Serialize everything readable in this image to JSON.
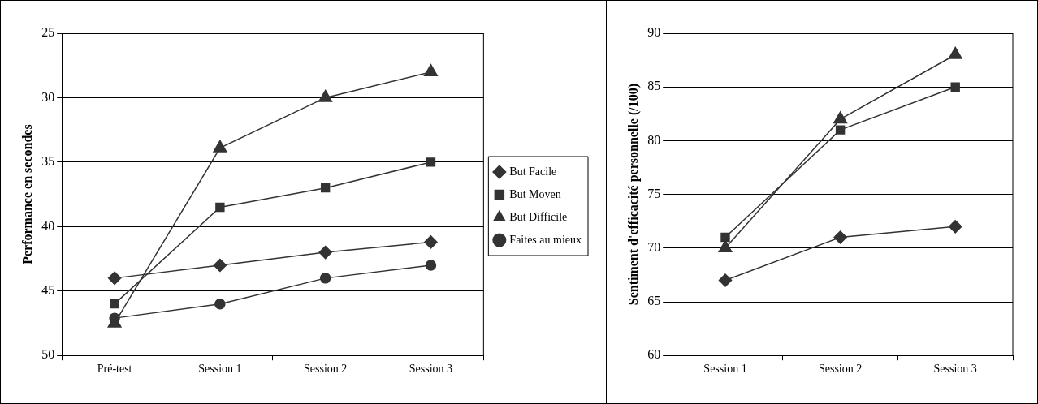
{
  "chart_data": [
    {
      "type": "line",
      "ylabel": "Performance en secondes",
      "categories": [
        "Pré-test",
        "Session 1",
        "Session 2",
        "Session 3"
      ],
      "ylim": [
        50,
        25
      ],
      "yticks": [
        25,
        30,
        35,
        40,
        45,
        50
      ],
      "grid": "y",
      "legend": "right",
      "line_style": "solid",
      "series": [
        {
          "name": "But Facile",
          "color": "#333333",
          "marker": "diamond",
          "values": [
            44,
            43,
            42,
            41.2
          ]
        },
        {
          "name": "But Moyen",
          "color": "#333333",
          "marker": "square",
          "values": [
            46,
            38.5,
            37,
            35
          ]
        },
        {
          "name": "But Difficile",
          "color": "#333333",
          "marker": "triangle",
          "values": [
            47.5,
            33.9,
            30,
            28
          ]
        },
        {
          "name": "Faites au mieux",
          "color": "#333333",
          "marker": "circle",
          "values": [
            47.1,
            46,
            44,
            43
          ]
        }
      ]
    },
    {
      "type": "line",
      "ylabel": "Sentiment d'efficacité personnelle (/100)",
      "categories": [
        "Session 1",
        "Session 2",
        "Session 3"
      ],
      "ylim": [
        60,
        90
      ],
      "yticks": [
        60,
        65,
        70,
        75,
        80,
        85,
        90
      ],
      "grid": "y",
      "legend": false,
      "line_style": "solid",
      "series": [
        {
          "color": "#333333",
          "marker": "diamond",
          "values": [
            67,
            71,
            72
          ]
        },
        {
          "color": "#333333",
          "marker": "square",
          "values": [
            71,
            81,
            85
          ]
        },
        {
          "color": "#333333",
          "marker": "triangle",
          "values": [
            70,
            82,
            88
          ]
        }
      ]
    }
  ]
}
